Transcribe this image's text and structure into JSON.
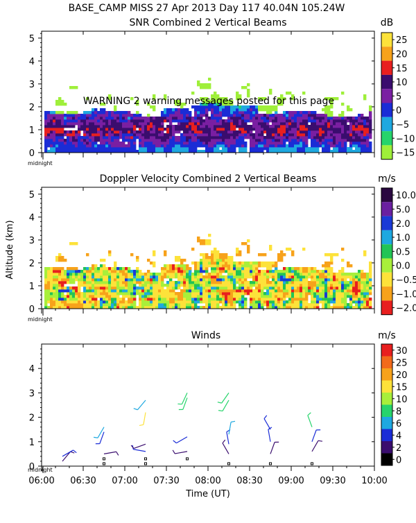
{
  "header": {
    "title": "BASE_CAMP MISS  27 Apr 2013 Day 117 40.04N 105.24W"
  },
  "warning": "WARNING  2 warning messages posted for this page",
  "ylabel": "Altitude (km)",
  "xlabel": "Time (UT)",
  "x_ticks": [
    "06:00",
    "06:30",
    "07:00",
    "07:30",
    "08:00",
    "08:30",
    "09:00",
    "09:30",
    "10:00"
  ],
  "midnight_label": "midnight",
  "chart_data": [
    {
      "type": "heatmap",
      "title": "SNR Combined 2 Vertical Beams",
      "units": "dB",
      "xlabel": "Time (UT)",
      "ylabel": "Altitude (km)",
      "xlim": [
        "06:00",
        "10:00"
      ],
      "ylim": [
        0,
        5.3
      ],
      "y_ticks": [
        "0",
        "1",
        "2",
        "3",
        "4",
        "5"
      ],
      "colorbar": [
        "25",
        "20",
        "15",
        "10",
        "5",
        "0",
        "−5",
        "−10",
        "−15"
      ],
      "colorbar_colors": [
        "#fde23a",
        "#f7a21b",
        "#e81f1f",
        "#3a0d6e",
        "#7a1fa2",
        "#1a2cd6",
        "#1ea8e0",
        "#26d46b",
        "#9fef3a"
      ]
    },
    {
      "type": "heatmap",
      "title": "Doppler Velocity Combined 2 Vertical Beams",
      "units": "m/s",
      "xlabel": "Time (UT)",
      "ylabel": "Altitude (km)",
      "xlim": [
        "06:00",
        "10:00"
      ],
      "ylim": [
        0,
        5.3
      ],
      "y_ticks": [
        "0",
        "1",
        "2",
        "3",
        "4",
        "5"
      ],
      "colorbar": [
        "10.0",
        "5.0",
        "2.0",
        "1.0",
        "0.5",
        "0.0",
        "−0.5",
        "−1.0",
        "−2.0"
      ],
      "colorbar_colors": [
        "#2a0840",
        "#6a1fa0",
        "#1a3ad6",
        "#1ea8e0",
        "#22c455",
        "#a8ef3a",
        "#fde23a",
        "#f7a21b",
        "#e81f1f"
      ]
    },
    {
      "type": "scatter",
      "title": "Winds",
      "units": "m/s",
      "xlabel": "Time (UT)",
      "ylabel": "Altitude (km)",
      "xlim": [
        "06:00",
        "10:00"
      ],
      "ylim": [
        0,
        5
      ],
      "y_ticks": [
        "0",
        "1",
        "2",
        "3",
        "4"
      ],
      "colorbar": [
        "30",
        "25",
        "20",
        "15",
        "10",
        "8",
        "6",
        "4",
        "2",
        "0"
      ],
      "colorbar_colors": [
        "#e81f1f",
        "#f26a1b",
        "#f7a21b",
        "#fde23a",
        "#a8ef3a",
        "#26d46b",
        "#1ea8e0",
        "#1a2cd6",
        "#3a0d6e",
        "#000000"
      ],
      "profile_times": [
        "06:15",
        "06:45",
        "07:15",
        "07:45",
        "08:15",
        "08:45",
        "09:15"
      ],
      "profiles": [
        {
          "time": "06:15",
          "barbs": [
            {
              "alt": 0.2,
              "speed": 2,
              "dir": 40
            },
            {
              "alt": 0.4,
              "speed": 4,
              "dir": 60
            }
          ]
        },
        {
          "time": "06:45",
          "barbs": [
            {
              "alt": 0.1,
              "speed": 0,
              "dir": 0
            },
            {
              "alt": 0.3,
              "speed": 0,
              "dir": 0
            },
            {
              "alt": 0.5,
              "speed": 2,
              "dir": 80
            },
            {
              "alt": 1.4,
              "speed": 4,
              "dir": 200
            },
            {
              "alt": 1.6,
              "speed": 6,
              "dir": 210
            }
          ]
        },
        {
          "time": "07:15",
          "barbs": [
            {
              "alt": 0.1,
              "speed": 0,
              "dir": 0
            },
            {
              "alt": 0.3,
              "speed": 0,
              "dir": 0
            },
            {
              "alt": 0.6,
              "speed": 4,
              "dir": 280
            },
            {
              "alt": 0.9,
              "speed": 2,
              "dir": 250
            },
            {
              "alt": 2.2,
              "speed": 15,
              "dir": 190
            },
            {
              "alt": 2.7,
              "speed": 6,
              "dir": 220
            }
          ]
        },
        {
          "time": "07:45",
          "barbs": [
            {
              "alt": 0.3,
              "speed": 0,
              "dir": 300
            },
            {
              "alt": 0.6,
              "speed": 2,
              "dir": 260
            },
            {
              "alt": 1.2,
              "speed": 4,
              "dir": 240
            },
            {
              "alt": 2.8,
              "speed": 8,
              "dir": 200
            },
            {
              "alt": 3.0,
              "speed": 8,
              "dir": 205
            }
          ]
        },
        {
          "time": "08:15",
          "barbs": [
            {
              "alt": 0.1,
              "speed": 0,
              "dir": 0
            },
            {
              "alt": 0.5,
              "speed": 2,
              "dir": 330
            },
            {
              "alt": 0.9,
              "speed": 4,
              "dir": 350
            },
            {
              "alt": 1.3,
              "speed": 6,
              "dir": 10
            },
            {
              "alt": 2.7,
              "speed": 8,
              "dir": 210
            },
            {
              "alt": 3.0,
              "speed": 8,
              "dir": 215
            }
          ]
        },
        {
          "time": "08:45",
          "barbs": [
            {
              "alt": 0.1,
              "speed": 0,
              "dir": 0
            },
            {
              "alt": 0.5,
              "speed": 2,
              "dir": 20
            },
            {
              "alt": 1.0,
              "speed": 4,
              "dir": 350
            },
            {
              "alt": 1.5,
              "speed": 4,
              "dir": 330
            }
          ]
        },
        {
          "time": "09:15",
          "barbs": [
            {
              "alt": 0.1,
              "speed": 0,
              "dir": 0
            },
            {
              "alt": 0.6,
              "speed": 2,
              "dir": 30
            },
            {
              "alt": 1.0,
              "speed": 4,
              "dir": 20
            },
            {
              "alt": 1.6,
              "speed": 8,
              "dir": 340
            }
          ]
        }
      ]
    }
  ]
}
